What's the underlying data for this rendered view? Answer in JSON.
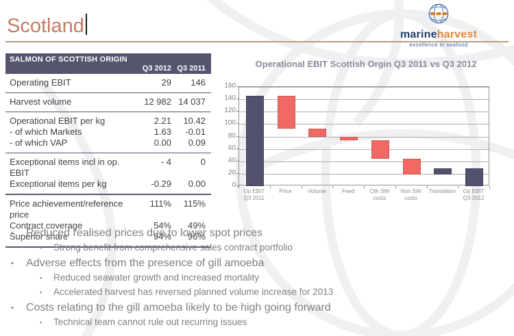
{
  "slide": {
    "title": "Scotland"
  },
  "logo": {
    "brand_blue": "marine",
    "brand_orange": "harvest",
    "tagline": "excellence in seafood",
    "colors": {
      "blue": "#1e3c6e",
      "orange": "#e2833c"
    }
  },
  "table": {
    "title": "SALMON OF SCOTTISH ORIGIN",
    "columns": [
      "Q3 2012",
      "Q3 2011"
    ],
    "rows": [
      {
        "label": "Operating EBIT",
        "v1": "29",
        "v2": "146"
      },
      {
        "label": "Harvest volume",
        "v1": "12 982",
        "v2": "14 037"
      },
      {
        "label": "Operational EBIT per kg",
        "v1": "2.21",
        "v2": "10.42"
      },
      {
        "label": "- of which Markets",
        "v1": "1.63",
        "v2": "-0.01"
      },
      {
        "label": "- of which VAP",
        "v1": "0.00",
        "v2": "0.09"
      },
      {
        "label": "Exceptional items incl in op. EBIT",
        "v1": "- 4",
        "v2": "0"
      },
      {
        "label": "Exceptional items per kg",
        "v1": "-0.29",
        "v2": "0.00"
      },
      {
        "label": "Price achievement/reference price",
        "v1": "111%",
        "v2": "115%"
      },
      {
        "label": "Contract coverage",
        "v1": "54%",
        "v2": "49%"
      },
      {
        "label": "Superior share",
        "v1": "94%",
        "v2": "96%"
      }
    ]
  },
  "chart_data": {
    "type": "bar",
    "subtype": "waterfall",
    "title": "Operational EBIT Scottish Orgin Q3 2011 vs Q3 2012",
    "categories": [
      "Op EBIT Q3 2011",
      "Price",
      "Volume",
      "Feed",
      "Oth SW costs",
      "Non SW costs",
      "Translation",
      "Op EBIT Q3 2012"
    ],
    "bars": [
      {
        "label": "Op EBIT Q3 2011",
        "from": 0,
        "to": 146,
        "color": "#53526e",
        "border": "#43425a"
      },
      {
        "label": "Price",
        "from": 146,
        "to": 93,
        "color": "#f06964",
        "border": "#c85b52"
      },
      {
        "label": "Volume",
        "from": 93,
        "to": 80,
        "color": "#f06964",
        "border": "#c85b52"
      },
      {
        "label": "Feed",
        "from": 80,
        "to": 74,
        "color": "#f06964",
        "border": "#c85b52"
      },
      {
        "label": "Oth SW costs",
        "from": 74,
        "to": 44,
        "color": "#f06964",
        "border": "#c85b52"
      },
      {
        "label": "Non SW costs",
        "from": 44,
        "to": 19,
        "color": "#f06964",
        "border": "#c85b52"
      },
      {
        "label": "Translation",
        "from": 19,
        "to": 29,
        "color": "#53526e",
        "border": "#43425a"
      },
      {
        "label": "Op EBIT Q3 2012",
        "from": 0,
        "to": 29,
        "color": "#53526e",
        "border": "#43425a"
      }
    ],
    "ylim": [
      0,
      160
    ],
    "ytick_step": 20,
    "grid": true,
    "legend": false,
    "colors": {
      "total": "#53526e",
      "decrease": "#f06964"
    }
  },
  "bullets": [
    {
      "text": "Reduced realised prices due to lower spot prices",
      "subs": [
        "Strong benefit from comprehensive sales contract portfolio"
      ]
    },
    {
      "text": "Adverse effects from the presence of gill amoeba",
      "subs": [
        "Reduced seawater growth and increased mortality",
        "Accelerated harvest has reversed planned volume increase for 2013"
      ]
    },
    {
      "text": "Costs relating to the gill amoeba likely to be high going forward",
      "subs": [
        "Technical team cannot rule out recurring issues"
      ]
    }
  ]
}
